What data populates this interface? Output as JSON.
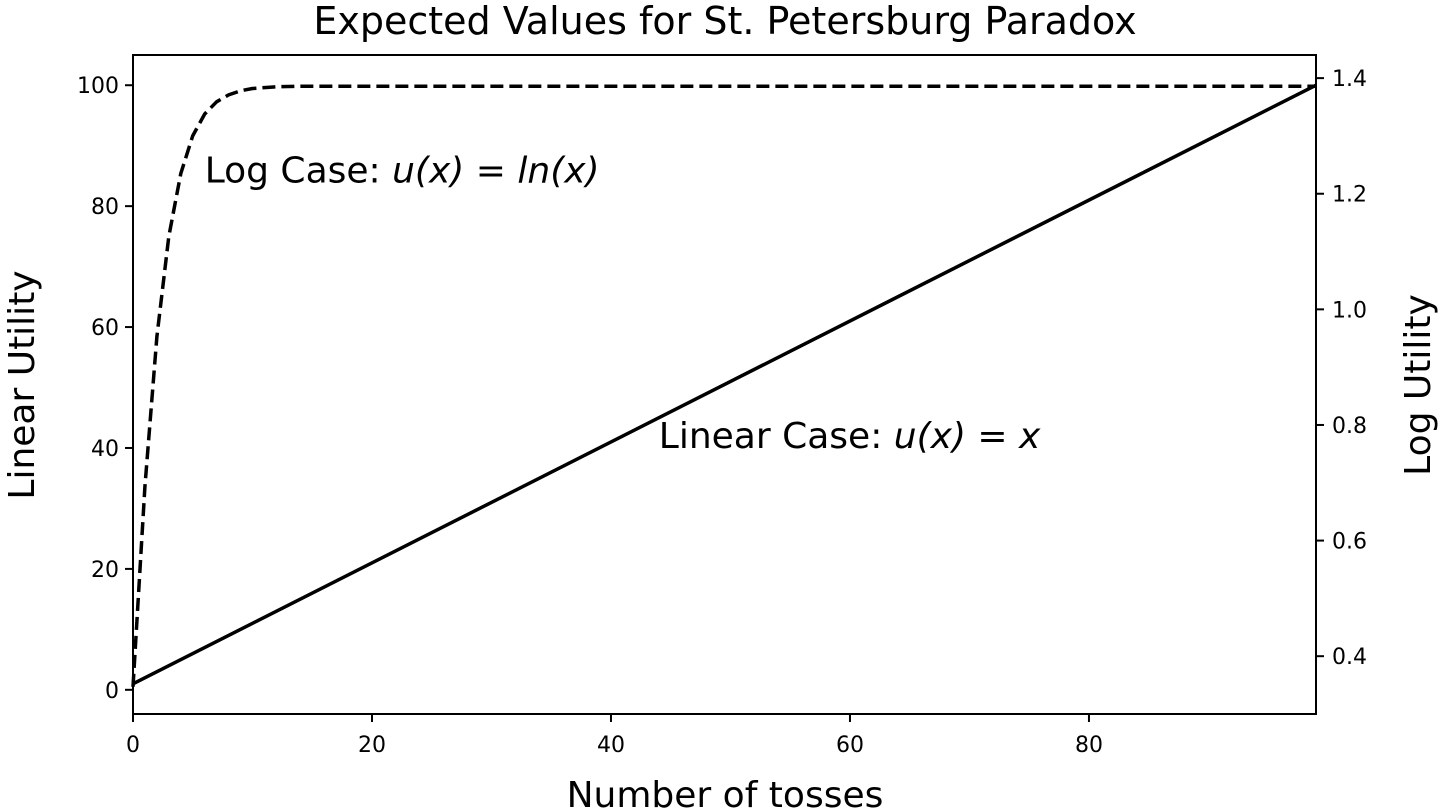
{
  "chart_data": {
    "type": "line",
    "title": "Expected Values for St. Petersburg Paradox",
    "xlabel": "Number of tosses",
    "ylabel_left": "Linear Utility",
    "ylabel_right": "Log Utility",
    "xlim": [
      0,
      99
    ],
    "ylim_left": [
      -4,
      105
    ],
    "ylim_right": [
      0.3,
      1.44
    ],
    "x_ticks": [
      0,
      20,
      40,
      60,
      80
    ],
    "y_ticks_left": [
      0,
      20,
      40,
      60,
      80,
      100
    ],
    "y_ticks_right": [
      0.4,
      0.6,
      0.8,
      1.0,
      1.2,
      1.4
    ],
    "y_tick_labels_right": [
      "0.4",
      "0.6",
      "0.8",
      "1.0",
      "1.2",
      "1.4"
    ],
    "grid": false,
    "series": [
      {
        "axis": "left",
        "style": "solid",
        "x": [
          0,
          99
        ],
        "y": [
          1,
          100
        ]
      },
      {
        "axis": "right",
        "style": "dashed",
        "x": [
          0,
          1,
          2,
          3,
          4,
          5,
          6,
          7,
          8,
          9,
          10,
          12,
          14,
          20,
          30,
          40,
          60,
          80,
          99
        ],
        "y": [
          0.347,
          0.693,
          0.953,
          1.126,
          1.235,
          1.3,
          1.338,
          1.359,
          1.371,
          1.378,
          1.382,
          1.385,
          1.386,
          1.386,
          1.386,
          1.386,
          1.386,
          1.386,
          1.386
        ]
      }
    ],
    "annotations": {
      "log_case": {
        "prefix": "Log Case: ",
        "math": "u(x) = ln(x)",
        "x": 6,
        "y_right": 1.24
      },
      "linear_case": {
        "prefix": "Linear Case: ",
        "math": "u(x) = x",
        "x": 44,
        "y_left": 42
      }
    }
  }
}
